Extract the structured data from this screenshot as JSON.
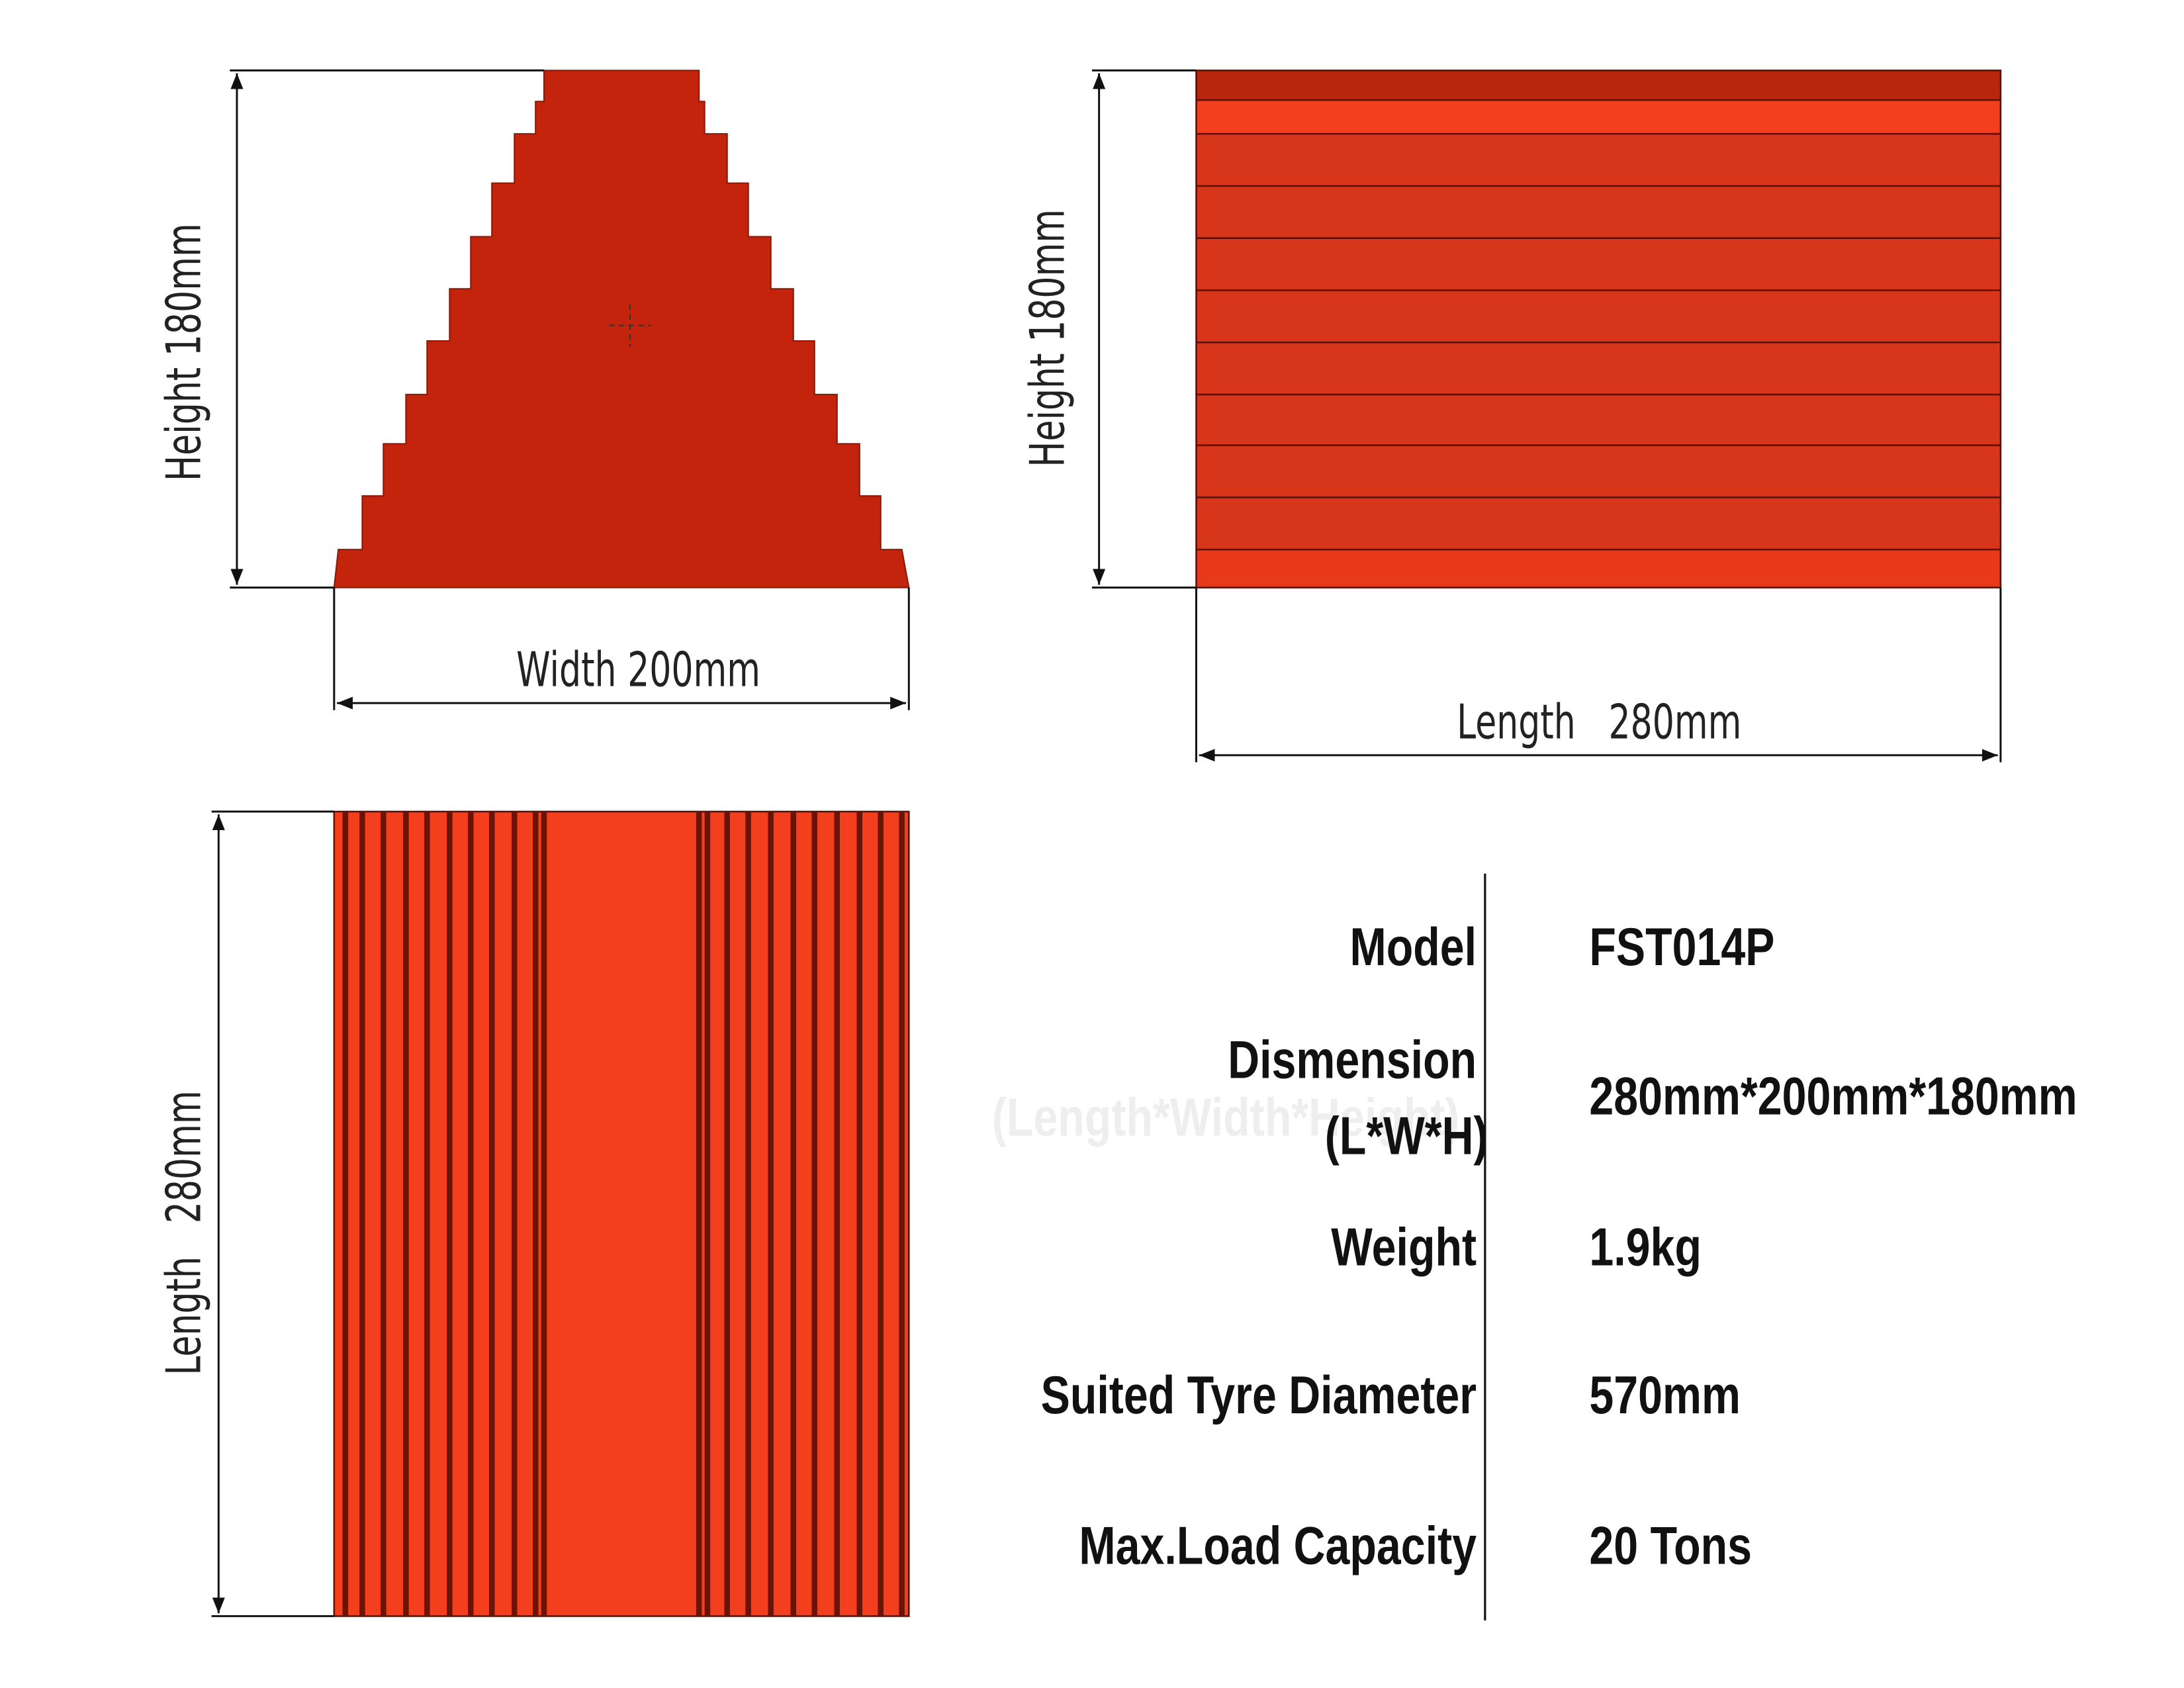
{
  "drawings": {
    "front": {
      "height_label": "Height 180mm",
      "width_label": "Width 200mm"
    },
    "side": {
      "height_label": "Height 180mm",
      "length_label": "Length   280mm"
    },
    "top": {
      "length_label": "Length   280mm"
    }
  },
  "specs": {
    "rows": [
      {
        "label": "Model",
        "value": "FST014P"
      },
      {
        "label": "Dismension",
        "sublabel": "(L*W*H)",
        "value": "280mm*200mm*180mm"
      },
      {
        "label": "Weight",
        "value": "1.9kg"
      },
      {
        "label": "Suited Tyre Diameter",
        "value": "570mm"
      },
      {
        "label": "Max.Load Capacity",
        "value": "20 Tons"
      }
    ]
  },
  "watermark": "(Length*Width*Height)"
}
